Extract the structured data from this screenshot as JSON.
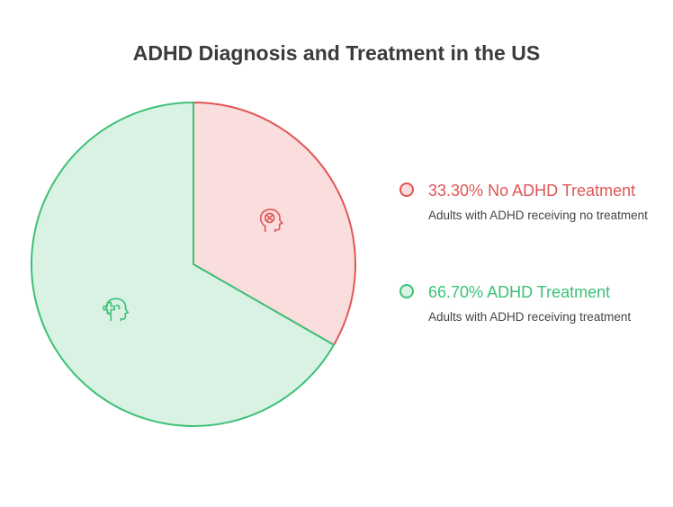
{
  "chart_data": {
    "type": "pie",
    "title": "ADHD Diagnosis and Treatment in the US",
    "slices": [
      {
        "label": "No ADHD Treatment",
        "value": 33.3,
        "value_text": "33.30%",
        "description": "Adults with ADHD receiving no treatment",
        "fill": "#fadedd",
        "stroke": "#e05555",
        "icon": "head-cross-icon"
      },
      {
        "label": "ADHD Treatment",
        "value": 66.7,
        "value_text": "66.70%",
        "description": "Adults with ADHD receiving treatment",
        "fill": "#d9f2e3",
        "stroke": "#3cc177",
        "icon": "head-plus-icon"
      }
    ],
    "legend_position": "right"
  }
}
